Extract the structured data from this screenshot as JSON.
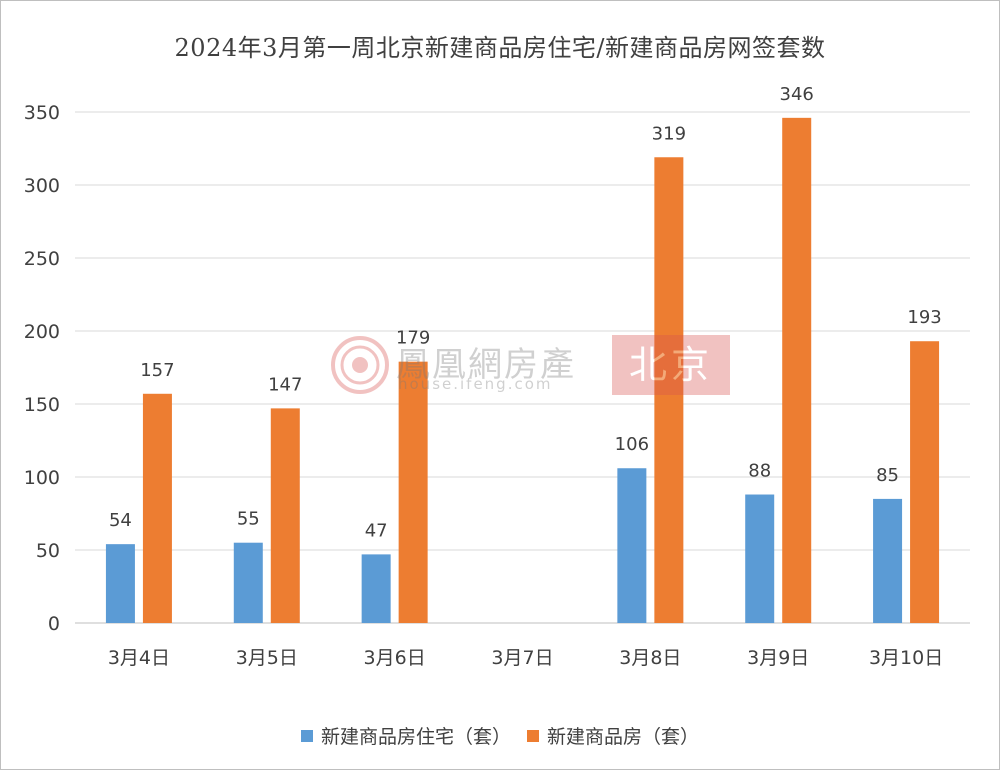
{
  "chart_data": {
    "type": "bar",
    "title": "2024年3月第一周北京新建商品房住宅/新建商品房网签套数",
    "categories": [
      "3月4日",
      "3月5日",
      "3月6日",
      "3月7日",
      "3月8日",
      "3月9日",
      "3月10日"
    ],
    "series": [
      {
        "name": "新建商品房住宅（套）",
        "color": "#5b9bd5",
        "values": [
          54,
          55,
          47,
          null,
          106,
          88,
          85
        ]
      },
      {
        "name": "新建商品房（套）",
        "color": "#ed7d31",
        "values": [
          157,
          147,
          179,
          null,
          319,
          346,
          193
        ]
      }
    ],
    "ylim": [
      0,
      350
    ],
    "yticks": [
      0,
      50,
      100,
      150,
      200,
      250,
      300,
      350
    ],
    "grid": true,
    "legend_position": "bottom"
  },
  "watermark": {
    "logo_icon": "phoenix-logo-icon",
    "brand": "鳳凰網房產",
    "url": "house.ifeng.com",
    "city": "北京"
  }
}
